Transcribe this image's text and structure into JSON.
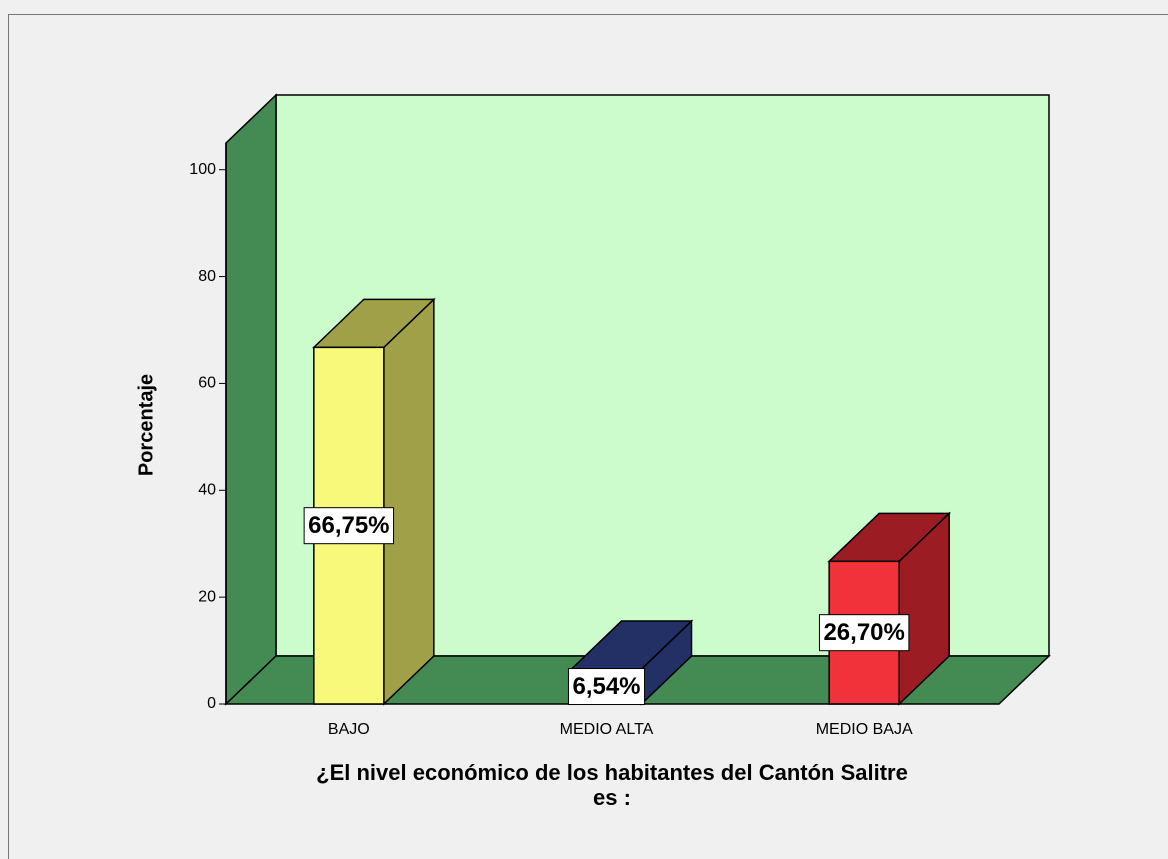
{
  "chart_data": {
    "type": "bar3d",
    "y_label": "Porcentaje",
    "x_label": "¿El nivel económico de los habitantes del Cantón Salitre es :",
    "categories": [
      "BAJO",
      "MEDIO ALTA",
      "MEDIO BAJA"
    ],
    "values": [
      66.75,
      6.54,
      26.7
    ],
    "value_labels": [
      "66,75%",
      "6,54%",
      "26,70%"
    ],
    "colors": [
      "#f8f87a",
      "#2b3b7a",
      "#f0333a"
    ],
    "side_colors": [
      "#a0a048",
      "#223066",
      "#9b1c22"
    ],
    "wall_color": "#ccfccc",
    "floor_color": "#438a53",
    "ylim": [
      0,
      105
    ],
    "yticks": [
      0,
      20,
      40,
      60,
      80,
      100
    ]
  }
}
